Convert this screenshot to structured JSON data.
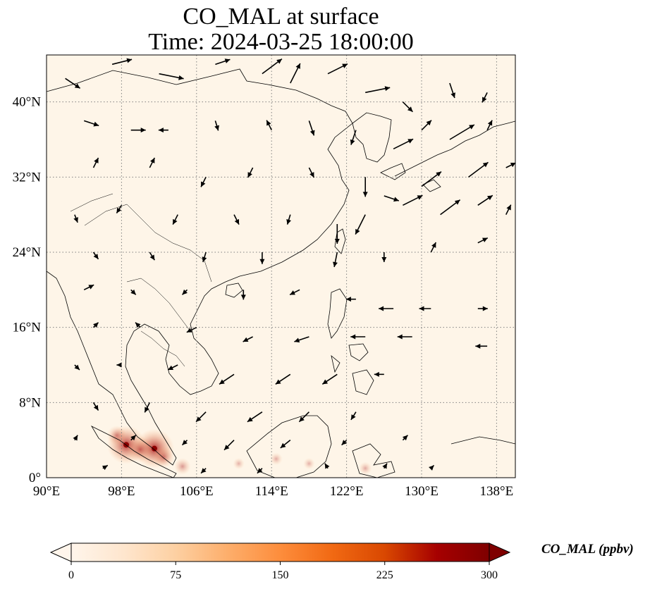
{
  "title": {
    "line1": "CO_MAL at surface",
    "line2": "Time: 2024-03-25 18:00:00"
  },
  "map": {
    "extent": {
      "lon_min": 90,
      "lon_max": 140,
      "lat_min": 0,
      "lat_max": 45
    },
    "background_color": "#fef5e8",
    "gridlines": "dotted",
    "coastline_color": "#000000",
    "lon_ticks": [
      {
        "value": 90,
        "label": "90°E"
      },
      {
        "value": 98,
        "label": "98°E"
      },
      {
        "value": 106,
        "label": "106°E"
      },
      {
        "value": 114,
        "label": "114°E"
      },
      {
        "value": 122,
        "label": "122°E"
      },
      {
        "value": 130,
        "label": "130°E"
      },
      {
        "value": 138,
        "label": "138°E"
      }
    ],
    "lat_ticks": [
      {
        "value": 0,
        "label": "0°"
      },
      {
        "value": 8,
        "label": "8°N"
      },
      {
        "value": 16,
        "label": "16°N"
      },
      {
        "value": 24,
        "label": "24°N"
      },
      {
        "value": 32,
        "label": "32°N"
      },
      {
        "value": 40,
        "label": "40°N"
      }
    ],
    "hotspots": [
      {
        "lon": 98.5,
        "lat": 3.5,
        "value": 290
      },
      {
        "lon": 101.5,
        "lat": 3.1,
        "value": 300
      },
      {
        "lon": 100.0,
        "lat": 3.0,
        "value": 170
      },
      {
        "lon": 102.5,
        "lat": 2.2,
        "value": 130
      },
      {
        "lon": 97.5,
        "lat": 4.5,
        "value": 110
      },
      {
        "lon": 104.5,
        "lat": 1.2,
        "value": 80
      },
      {
        "lon": 114.5,
        "lat": 2.0,
        "value": 40
      },
      {
        "lon": 118.0,
        "lat": 1.5,
        "value": 30
      },
      {
        "lon": 124.0,
        "lat": 1.0,
        "value": 45
      },
      {
        "lon": 110.5,
        "lat": 1.5,
        "value": 30
      }
    ]
  },
  "wind_vectors": {
    "color": "#000000",
    "arrows": [
      {
        "lon": 92,
        "lat": 42.5,
        "u": 1.5,
        "v": -1.0
      },
      {
        "lon": 97,
        "lat": 44,
        "u": 2,
        "v": 0.5
      },
      {
        "lon": 102,
        "lat": 43,
        "u": 2.5,
        "v": -0.5
      },
      {
        "lon": 108,
        "lat": 44,
        "u": 1.5,
        "v": 0.5
      },
      {
        "lon": 113,
        "lat": 43,
        "u": 2.0,
        "v": 1.5
      },
      {
        "lon": 116,
        "lat": 42,
        "u": 1.0,
        "v": 2.0
      },
      {
        "lon": 120,
        "lat": 43,
        "u": 2.0,
        "v": 1.0
      },
      {
        "lon": 124,
        "lat": 41,
        "u": 2.5,
        "v": 0.5
      },
      {
        "lon": 128,
        "lat": 40,
        "u": 1.0,
        "v": -1.0
      },
      {
        "lon": 133,
        "lat": 42,
        "u": 0.5,
        "v": -1.5
      },
      {
        "lon": 137,
        "lat": 41,
        "u": -0.5,
        "v": -1.0
      },
      {
        "lon": 94,
        "lat": 38,
        "u": 1.5,
        "v": -0.5
      },
      {
        "lon": 99,
        "lat": 37,
        "u": 1.5,
        "v": 0
      },
      {
        "lon": 103,
        "lat": 37,
        "u": -1.0,
        "v": 0
      },
      {
        "lon": 108,
        "lat": 38,
        "u": 0.3,
        "v": -1.0
      },
      {
        "lon": 114,
        "lat": 37,
        "u": -0.5,
        "v": 1.0
      },
      {
        "lon": 118,
        "lat": 38,
        "u": 0.5,
        "v": -1.5
      },
      {
        "lon": 123,
        "lat": 37,
        "u": -0.5,
        "v": -1.5
      },
      {
        "lon": 127,
        "lat": 35,
        "u": 2.0,
        "v": 1.0
      },
      {
        "lon": 130,
        "lat": 37,
        "u": 1.0,
        "v": 1.0
      },
      {
        "lon": 133,
        "lat": 36,
        "u": 2.5,
        "v": 1.5
      },
      {
        "lon": 137,
        "lat": 37,
        "u": 0.5,
        "v": 1.0
      },
      {
        "lon": 95,
        "lat": 33,
        "u": 0.5,
        "v": 1.0
      },
      {
        "lon": 101,
        "lat": 33,
        "u": 0.5,
        "v": 1.0
      },
      {
        "lon": 107,
        "lat": 32,
        "u": -0.5,
        "v": -1.0
      },
      {
        "lon": 112,
        "lat": 33,
        "u": -0.5,
        "v": -1.0
      },
      {
        "lon": 118,
        "lat": 33,
        "u": 0.5,
        "v": -1.0
      },
      {
        "lon": 124,
        "lat": 32,
        "u": 0,
        "v": -2.0
      },
      {
        "lon": 126,
        "lat": 30,
        "u": 1.5,
        "v": -0.5
      },
      {
        "lon": 130,
        "lat": 31,
        "u": 2.0,
        "v": 1.5
      },
      {
        "lon": 135,
        "lat": 32,
        "u": 2.0,
        "v": 1.5
      },
      {
        "lon": 139,
        "lat": 33,
        "u": 1.0,
        "v": 0.5
      },
      {
        "lon": 93,
        "lat": 28,
        "u": 0.3,
        "v": -0.8
      },
      {
        "lon": 98,
        "lat": 29,
        "u": -0.5,
        "v": -0.8
      },
      {
        "lon": 104,
        "lat": 28,
        "u": -0.5,
        "v": -1.0
      },
      {
        "lon": 110,
        "lat": 28,
        "u": 0.5,
        "v": -1.0
      },
      {
        "lon": 116,
        "lat": 28,
        "u": -0.3,
        "v": -1.0
      },
      {
        "lon": 121,
        "lat": 27,
        "u": 0,
        "v": -2.0
      },
      {
        "lon": 124,
        "lat": 28,
        "u": -1.0,
        "v": -2.0
      },
      {
        "lon": 128,
        "lat": 29,
        "u": 2.0,
        "v": 1.0
      },
      {
        "lon": 132,
        "lat": 28,
        "u": 2.0,
        "v": 1.5
      },
      {
        "lon": 136,
        "lat": 29,
        "u": 1.5,
        "v": 1.0
      },
      {
        "lon": 139,
        "lat": 28,
        "u": 0.5,
        "v": 1.0
      },
      {
        "lon": 95,
        "lat": 24,
        "u": 0.5,
        "v": -0.7
      },
      {
        "lon": 101,
        "lat": 24,
        "u": 0.5,
        "v": -0.8
      },
      {
        "lon": 107,
        "lat": 24,
        "u": -0.3,
        "v": -1.0
      },
      {
        "lon": 113,
        "lat": 24,
        "u": 0,
        "v": -1.2
      },
      {
        "lon": 121,
        "lat": 24,
        "u": -0.3,
        "v": -1.5
      },
      {
        "lon": 126,
        "lat": 24,
        "u": 0,
        "v": -1.0
      },
      {
        "lon": 131,
        "lat": 24,
        "u": 0.5,
        "v": 1.0
      },
      {
        "lon": 136,
        "lat": 25,
        "u": 1.0,
        "v": 0.5
      },
      {
        "lon": 94,
        "lat": 20,
        "u": 1.0,
        "v": 0.5
      },
      {
        "lon": 99,
        "lat": 20,
        "u": 0.5,
        "v": -0.5
      },
      {
        "lon": 105,
        "lat": 20,
        "u": -0.5,
        "v": -0.5
      },
      {
        "lon": 111,
        "lat": 20,
        "u": 0,
        "v": -1.0
      },
      {
        "lon": 117,
        "lat": 20,
        "u": -1.0,
        "v": -0.5
      },
      {
        "lon": 123,
        "lat": 19,
        "u": -1.0,
        "v": 0
      },
      {
        "lon": 127,
        "lat": 18,
        "u": -1.5,
        "v": 0
      },
      {
        "lon": 131,
        "lat": 18,
        "u": -1.2,
        "v": 0
      },
      {
        "lon": 136,
        "lat": 18,
        "u": 1.0,
        "v": 0
      },
      {
        "lon": 95,
        "lat": 16,
        "u": 0.5,
        "v": 0.5
      },
      {
        "lon": 100,
        "lat": 16,
        "u": -0.5,
        "v": 0.5
      },
      {
        "lon": 106,
        "lat": 16,
        "u": -1.0,
        "v": -0.5
      },
      {
        "lon": 112,
        "lat": 15,
        "u": -1.0,
        "v": -0.5
      },
      {
        "lon": 118,
        "lat": 15,
        "u": -1.5,
        "v": -0.5
      },
      {
        "lon": 124,
        "lat": 15,
        "u": -1.5,
        "v": 0
      },
      {
        "lon": 129,
        "lat": 15,
        "u": -1.5,
        "v": 0
      },
      {
        "lon": 137,
        "lat": 14,
        "u": -1.2,
        "v": 0
      },
      {
        "lon": 93,
        "lat": 12,
        "u": 0.5,
        "v": -0.5
      },
      {
        "lon": 98,
        "lat": 12,
        "u": -0.5,
        "v": 0
      },
      {
        "lon": 104,
        "lat": 12,
        "u": -1.0,
        "v": -0.5
      },
      {
        "lon": 110,
        "lat": 11,
        "u": -1.5,
        "v": -1.0
      },
      {
        "lon": 116,
        "lat": 11,
        "u": -1.5,
        "v": -1.0
      },
      {
        "lon": 121,
        "lat": 11,
        "u": -1.5,
        "v": -1.0
      },
      {
        "lon": 126,
        "lat": 11,
        "u": -1.0,
        "v": 0
      },
      {
        "lon": 95,
        "lat": 8,
        "u": 0.5,
        "v": -0.8
      },
      {
        "lon": 101,
        "lat": 8,
        "u": -0.5,
        "v": -1.0
      },
      {
        "lon": 107,
        "lat": 7,
        "u": -1.0,
        "v": -1.0
      },
      {
        "lon": 113,
        "lat": 7,
        "u": -1.5,
        "v": -1.0
      },
      {
        "lon": 118,
        "lat": 7,
        "u": -1.0,
        "v": -1.0
      },
      {
        "lon": 123,
        "lat": 7,
        "u": -0.5,
        "v": -0.8
      },
      {
        "lon": 93,
        "lat": 4,
        "u": 0.3,
        "v": 0.5
      },
      {
        "lon": 99,
        "lat": 4,
        "u": 0.5,
        "v": 0.5
      },
      {
        "lon": 105,
        "lat": 4,
        "u": -0.5,
        "v": -0.5
      },
      {
        "lon": 110,
        "lat": 4,
        "u": -1.0,
        "v": -1.0
      },
      {
        "lon": 116,
        "lat": 4,
        "u": -1.0,
        "v": -0.8
      },
      {
        "lon": 122,
        "lat": 4,
        "u": -0.5,
        "v": -0.5
      },
      {
        "lon": 128,
        "lat": 4,
        "u": 0.5,
        "v": 0.5
      },
      {
        "lon": 96,
        "lat": 1,
        "u": 0.5,
        "v": 0.3
      },
      {
        "lon": 107,
        "lat": 1,
        "u": -0.5,
        "v": -0.5
      },
      {
        "lon": 113,
        "lat": 1,
        "u": -0.5,
        "v": -0.5
      },
      {
        "lon": 120,
        "lat": 1,
        "u": -0.3,
        "v": 0.5
      },
      {
        "lon": 126,
        "lat": 1,
        "u": 0.3,
        "v": 0.5
      },
      {
        "lon": 131,
        "lat": 1,
        "u": 0.3,
        "v": 0.3
      }
    ]
  },
  "colorbar": {
    "label": "CO_MAL (ppbv)",
    "min": 0,
    "max": 300,
    "ticks": [
      {
        "value": 0,
        "label": "0"
      },
      {
        "value": 75,
        "label": "75"
      },
      {
        "value": 150,
        "label": "150"
      },
      {
        "value": 225,
        "label": "225"
      },
      {
        "value": 300,
        "label": "300"
      }
    ],
    "colors": [
      "#fff5eb",
      "#fee6ce",
      "#fdd0a2",
      "#fdae6b",
      "#fd8d3c",
      "#f16913",
      "#d94801",
      "#a60000",
      "#7f0000"
    ],
    "extend": "both"
  }
}
